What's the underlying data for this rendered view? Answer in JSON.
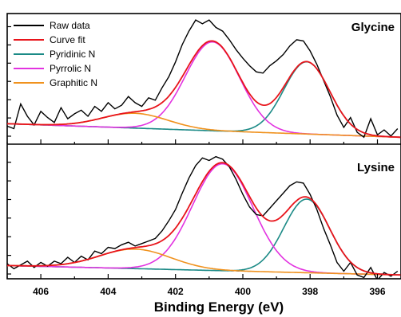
{
  "chart_data": {
    "type": "line",
    "xlabel": "Binding Energy (eV)",
    "xlim": [
      407.0,
      395.3
    ],
    "x_reversed": true,
    "x_ticks": [
      406,
      404,
      402,
      400,
      398,
      396
    ],
    "legend": {
      "placement": "top-left",
      "entries": [
        {
          "label": "Raw data",
          "color": "#000000"
        },
        {
          "label": "Curve fit",
          "color": "#e8141b"
        },
        {
          "label": "Pyridinic N",
          "color": "#1b8a86"
        },
        {
          "label": "Pyrrolic N",
          "color": "#e233e0"
        },
        {
          "label": "Graphitic N",
          "color": "#f0921e"
        }
      ]
    },
    "panels": [
      {
        "label": "Glycine",
        "ylim": [
          0,
          1.0
        ],
        "components": [
          {
            "name": "Pyridinic N",
            "color": "#1b8a86",
            "center": 398.1,
            "fwhm": 1.6,
            "height": 0.585
          },
          {
            "name": "Pyrrolic N",
            "color": "#e233e0",
            "center": 400.9,
            "fwhm": 1.9,
            "height": 0.72
          },
          {
            "name": "Graphitic N",
            "color": "#f0921e",
            "center": 403.2,
            "fwhm": 2.3,
            "height": 0.12
          }
        ],
        "baseline": {
          "x": [
            407.0,
            395.3
          ],
          "y": [
            0.14,
            0.03
          ]
        },
        "raw_data": {
          "x": [
            407.0,
            406.8,
            406.6,
            406.4,
            406.2,
            406.0,
            405.8,
            405.6,
            405.4,
            405.2,
            405.0,
            404.8,
            404.6,
            404.4,
            404.2,
            404.0,
            403.8,
            403.6,
            403.4,
            403.2,
            403.0,
            402.8,
            402.6,
            402.4,
            402.2,
            402.0,
            401.8,
            401.6,
            401.4,
            401.2,
            401.0,
            400.8,
            400.6,
            400.4,
            400.2,
            400.0,
            399.8,
            399.6,
            399.4,
            399.2,
            399.0,
            398.8,
            398.6,
            398.4,
            398.2,
            398.0,
            397.8,
            397.6,
            397.4,
            397.2,
            397.0,
            396.8,
            396.6,
            396.4,
            396.2,
            396.0,
            395.8,
            395.6,
            395.4
          ],
          "y": [
            0.12,
            0.1,
            0.3,
            0.2,
            0.13,
            0.24,
            0.19,
            0.15,
            0.27,
            0.18,
            0.22,
            0.25,
            0.2,
            0.28,
            0.24,
            0.31,
            0.26,
            0.29,
            0.36,
            0.31,
            0.28,
            0.35,
            0.33,
            0.43,
            0.52,
            0.64,
            0.78,
            0.89,
            0.98,
            0.95,
            0.98,
            0.92,
            0.89,
            0.82,
            0.74,
            0.67,
            0.61,
            0.56,
            0.55,
            0.61,
            0.65,
            0.7,
            0.77,
            0.82,
            0.81,
            0.73,
            0.62,
            0.49,
            0.36,
            0.21,
            0.11,
            0.19,
            0.07,
            0.03,
            0.18,
            0.05,
            0.09,
            0.04,
            0.1
          ]
        }
      },
      {
        "label": "Lysine",
        "ylim": [
          0,
          1.0
        ],
        "components": [
          {
            "name": "Pyridinic N",
            "color": "#1b8a86",
            "center": 398.1,
            "fwhm": 1.6,
            "height": 0.585
          },
          {
            "name": "Pyrrolic N",
            "color": "#e233e0",
            "center": 400.6,
            "fwhm": 2.1,
            "height": 0.85
          },
          {
            "name": "Graphitic N",
            "color": "#f0921e",
            "center": 403.2,
            "fwhm": 2.5,
            "height": 0.155
          }
        ],
        "baseline": {
          "x": [
            407.0,
            395.3
          ],
          "y": [
            0.105,
            0.03
          ]
        },
        "raw_data": {
          "x": [
            407.0,
            406.8,
            406.6,
            406.4,
            406.2,
            406.0,
            405.8,
            405.6,
            405.4,
            405.2,
            405.0,
            404.8,
            404.6,
            404.4,
            404.2,
            404.0,
            403.8,
            403.6,
            403.4,
            403.2,
            403.0,
            402.8,
            402.6,
            402.4,
            402.2,
            402.0,
            401.8,
            401.6,
            401.4,
            401.2,
            401.0,
            400.8,
            400.6,
            400.4,
            400.2,
            400.0,
            399.8,
            399.6,
            399.4,
            399.2,
            399.0,
            398.8,
            398.6,
            398.4,
            398.2,
            398.0,
            397.8,
            397.6,
            397.4,
            397.2,
            397.0,
            396.8,
            396.6,
            396.4,
            396.2,
            396.0,
            395.8,
            395.6,
            395.4
          ],
          "y": [
            0.12,
            0.08,
            0.11,
            0.14,
            0.09,
            0.13,
            0.1,
            0.14,
            0.12,
            0.17,
            0.13,
            0.18,
            0.15,
            0.22,
            0.2,
            0.25,
            0.24,
            0.27,
            0.29,
            0.26,
            0.28,
            0.3,
            0.32,
            0.38,
            0.46,
            0.55,
            0.68,
            0.8,
            0.9,
            0.96,
            0.94,
            0.97,
            0.95,
            0.89,
            0.79,
            0.67,
            0.57,
            0.51,
            0.5,
            0.56,
            0.62,
            0.68,
            0.74,
            0.77,
            0.76,
            0.67,
            0.55,
            0.4,
            0.27,
            0.13,
            0.06,
            0.13,
            0.03,
            0.01,
            0.09,
            -0.01,
            0.05,
            0.02,
            0.06
          ]
        }
      }
    ]
  }
}
